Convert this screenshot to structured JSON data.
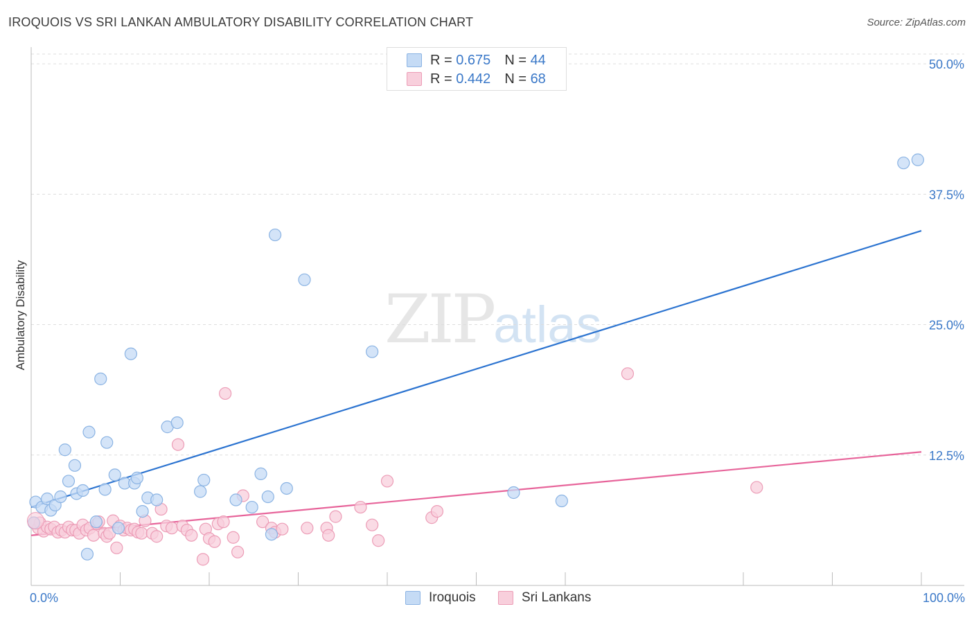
{
  "title": "IROQUOIS VS SRI LANKAN AMBULATORY DISABILITY CORRELATION CHART",
  "source": "Source: ZipAtlas.com",
  "watermark": {
    "zip": "ZIP",
    "atlas": "atlas"
  },
  "legend": {
    "rows": [
      {
        "r_label": "R =",
        "r_value": "0.675",
        "n_label": "N =",
        "n_value": "44"
      },
      {
        "r_label": "R =",
        "r_value": "0.442",
        "n_label": "N =",
        "n_value": "68"
      }
    ]
  },
  "colors": {
    "blue_fill": "#c5dbf5",
    "blue_stroke": "#8ab3e3",
    "blue_line": "#2b73d0",
    "pink_fill": "#f8cfdc",
    "pink_stroke": "#ec9cb6",
    "pink_line": "#e7649a",
    "tick_text": "#3a78c8",
    "grid": "#dddddd"
  },
  "chart_data": {
    "type": "scatter",
    "title": "IROQUOIS VS SRI LANKAN AMBULATORY DISABILITY CORRELATION CHART",
    "xlabel": "",
    "ylabel": "Ambulatory Disability",
    "xlim": [
      0,
      100
    ],
    "ylim": [
      0,
      52
    ],
    "x_tick_labels": [
      "0.0%",
      "100.0%"
    ],
    "y_ticks": [
      12.5,
      25.0,
      37.5,
      50.0
    ],
    "y_tick_labels": [
      "12.5%",
      "25.0%",
      "37.5%",
      "50.0%"
    ],
    "grid": true,
    "series": [
      {
        "name": "Iroquois",
        "regression": {
          "x": [
            0,
            100
          ],
          "y": [
            7.5,
            34.0
          ]
        },
        "points": [
          [
            0.3,
            6.0
          ],
          [
            0.5,
            8.0
          ],
          [
            1.2,
            7.5
          ],
          [
            1.8,
            8.3
          ],
          [
            2.2,
            7.2
          ],
          [
            2.7,
            7.7
          ],
          [
            3.3,
            8.5
          ],
          [
            3.8,
            13.0
          ],
          [
            4.2,
            10.0
          ],
          [
            4.9,
            11.5
          ],
          [
            5.1,
            8.8
          ],
          [
            5.8,
            9.1
          ],
          [
            6.5,
            14.7
          ],
          [
            6.3,
            3.0
          ],
          [
            7.3,
            6.1
          ],
          [
            7.8,
            19.8
          ],
          [
            8.3,
            9.2
          ],
          [
            8.5,
            13.7
          ],
          [
            9.4,
            10.6
          ],
          [
            9.8,
            5.5
          ],
          [
            10.5,
            9.8
          ],
          [
            11.2,
            22.2
          ],
          [
            11.6,
            9.8
          ],
          [
            11.9,
            10.3
          ],
          [
            12.5,
            7.1
          ],
          [
            13.1,
            8.4
          ],
          [
            14.1,
            8.2
          ],
          [
            15.3,
            15.2
          ],
          [
            16.4,
            15.6
          ],
          [
            19.0,
            9.0
          ],
          [
            19.4,
            10.1
          ],
          [
            23.0,
            8.2
          ],
          [
            24.8,
            7.5
          ],
          [
            25.8,
            10.7
          ],
          [
            26.6,
            8.5
          ],
          [
            27.0,
            4.9
          ],
          [
            27.4,
            33.6
          ],
          [
            28.7,
            9.3
          ],
          [
            30.7,
            29.3
          ],
          [
            38.3,
            22.4
          ],
          [
            54.2,
            8.9
          ],
          [
            59.6,
            8.1
          ],
          [
            98.0,
            40.5
          ],
          [
            99.6,
            40.8
          ]
        ]
      },
      {
        "name": "Sri Lankans",
        "regression": {
          "x": [
            0,
            100
          ],
          "y": [
            4.8,
            12.8
          ]
        },
        "points": [
          [
            0.3,
            6.0
          ],
          [
            0.8,
            5.5
          ],
          [
            1.0,
            6.0
          ],
          [
            1.4,
            5.2
          ],
          [
            1.8,
            5.6
          ],
          [
            2.2,
            5.4
          ],
          [
            2.6,
            5.6
          ],
          [
            3.0,
            5.1
          ],
          [
            3.4,
            5.3
          ],
          [
            3.8,
            5.1
          ],
          [
            4.2,
            5.6
          ],
          [
            4.6,
            5.3
          ],
          [
            5.0,
            5.3
          ],
          [
            5.4,
            5.0
          ],
          [
            5.8,
            5.8
          ],
          [
            6.2,
            5.3
          ],
          [
            6.6,
            5.5
          ],
          [
            7.0,
            4.8
          ],
          [
            7.4,
            5.9
          ],
          [
            7.6,
            6.1
          ],
          [
            8.2,
            5.0
          ],
          [
            8.5,
            4.7
          ],
          [
            8.8,
            5.0
          ],
          [
            9.6,
            3.6
          ],
          [
            9.2,
            6.2
          ],
          [
            10.0,
            5.7
          ],
          [
            10.4,
            5.3
          ],
          [
            10.8,
            5.5
          ],
          [
            11.2,
            5.3
          ],
          [
            11.6,
            5.4
          ],
          [
            12.0,
            5.1
          ],
          [
            12.4,
            5.0
          ],
          [
            12.8,
            6.2
          ],
          [
            13.6,
            5.0
          ],
          [
            14.1,
            4.7
          ],
          [
            14.6,
            7.3
          ],
          [
            15.2,
            5.7
          ],
          [
            15.8,
            5.5
          ],
          [
            16.5,
            13.5
          ],
          [
            17.0,
            5.7
          ],
          [
            17.5,
            5.3
          ],
          [
            18.0,
            4.8
          ],
          [
            19.3,
            2.5
          ],
          [
            19.6,
            5.4
          ],
          [
            20.0,
            4.5
          ],
          [
            20.6,
            4.2
          ],
          [
            21.0,
            5.9
          ],
          [
            21.6,
            6.1
          ],
          [
            21.8,
            18.4
          ],
          [
            22.7,
            4.6
          ],
          [
            23.2,
            3.2
          ],
          [
            23.8,
            8.6
          ],
          [
            26.0,
            6.1
          ],
          [
            27.0,
            5.5
          ],
          [
            27.4,
            5.1
          ],
          [
            28.2,
            5.4
          ],
          [
            31.0,
            5.5
          ],
          [
            33.2,
            5.5
          ],
          [
            33.4,
            4.8
          ],
          [
            34.2,
            6.6
          ],
          [
            37.0,
            7.5
          ],
          [
            38.3,
            5.8
          ],
          [
            39.0,
            4.3
          ],
          [
            40.0,
            10.0
          ],
          [
            45.0,
            6.5
          ],
          [
            45.6,
            7.1
          ],
          [
            67.0,
            20.3
          ],
          [
            81.5,
            9.4
          ]
        ]
      }
    ]
  }
}
